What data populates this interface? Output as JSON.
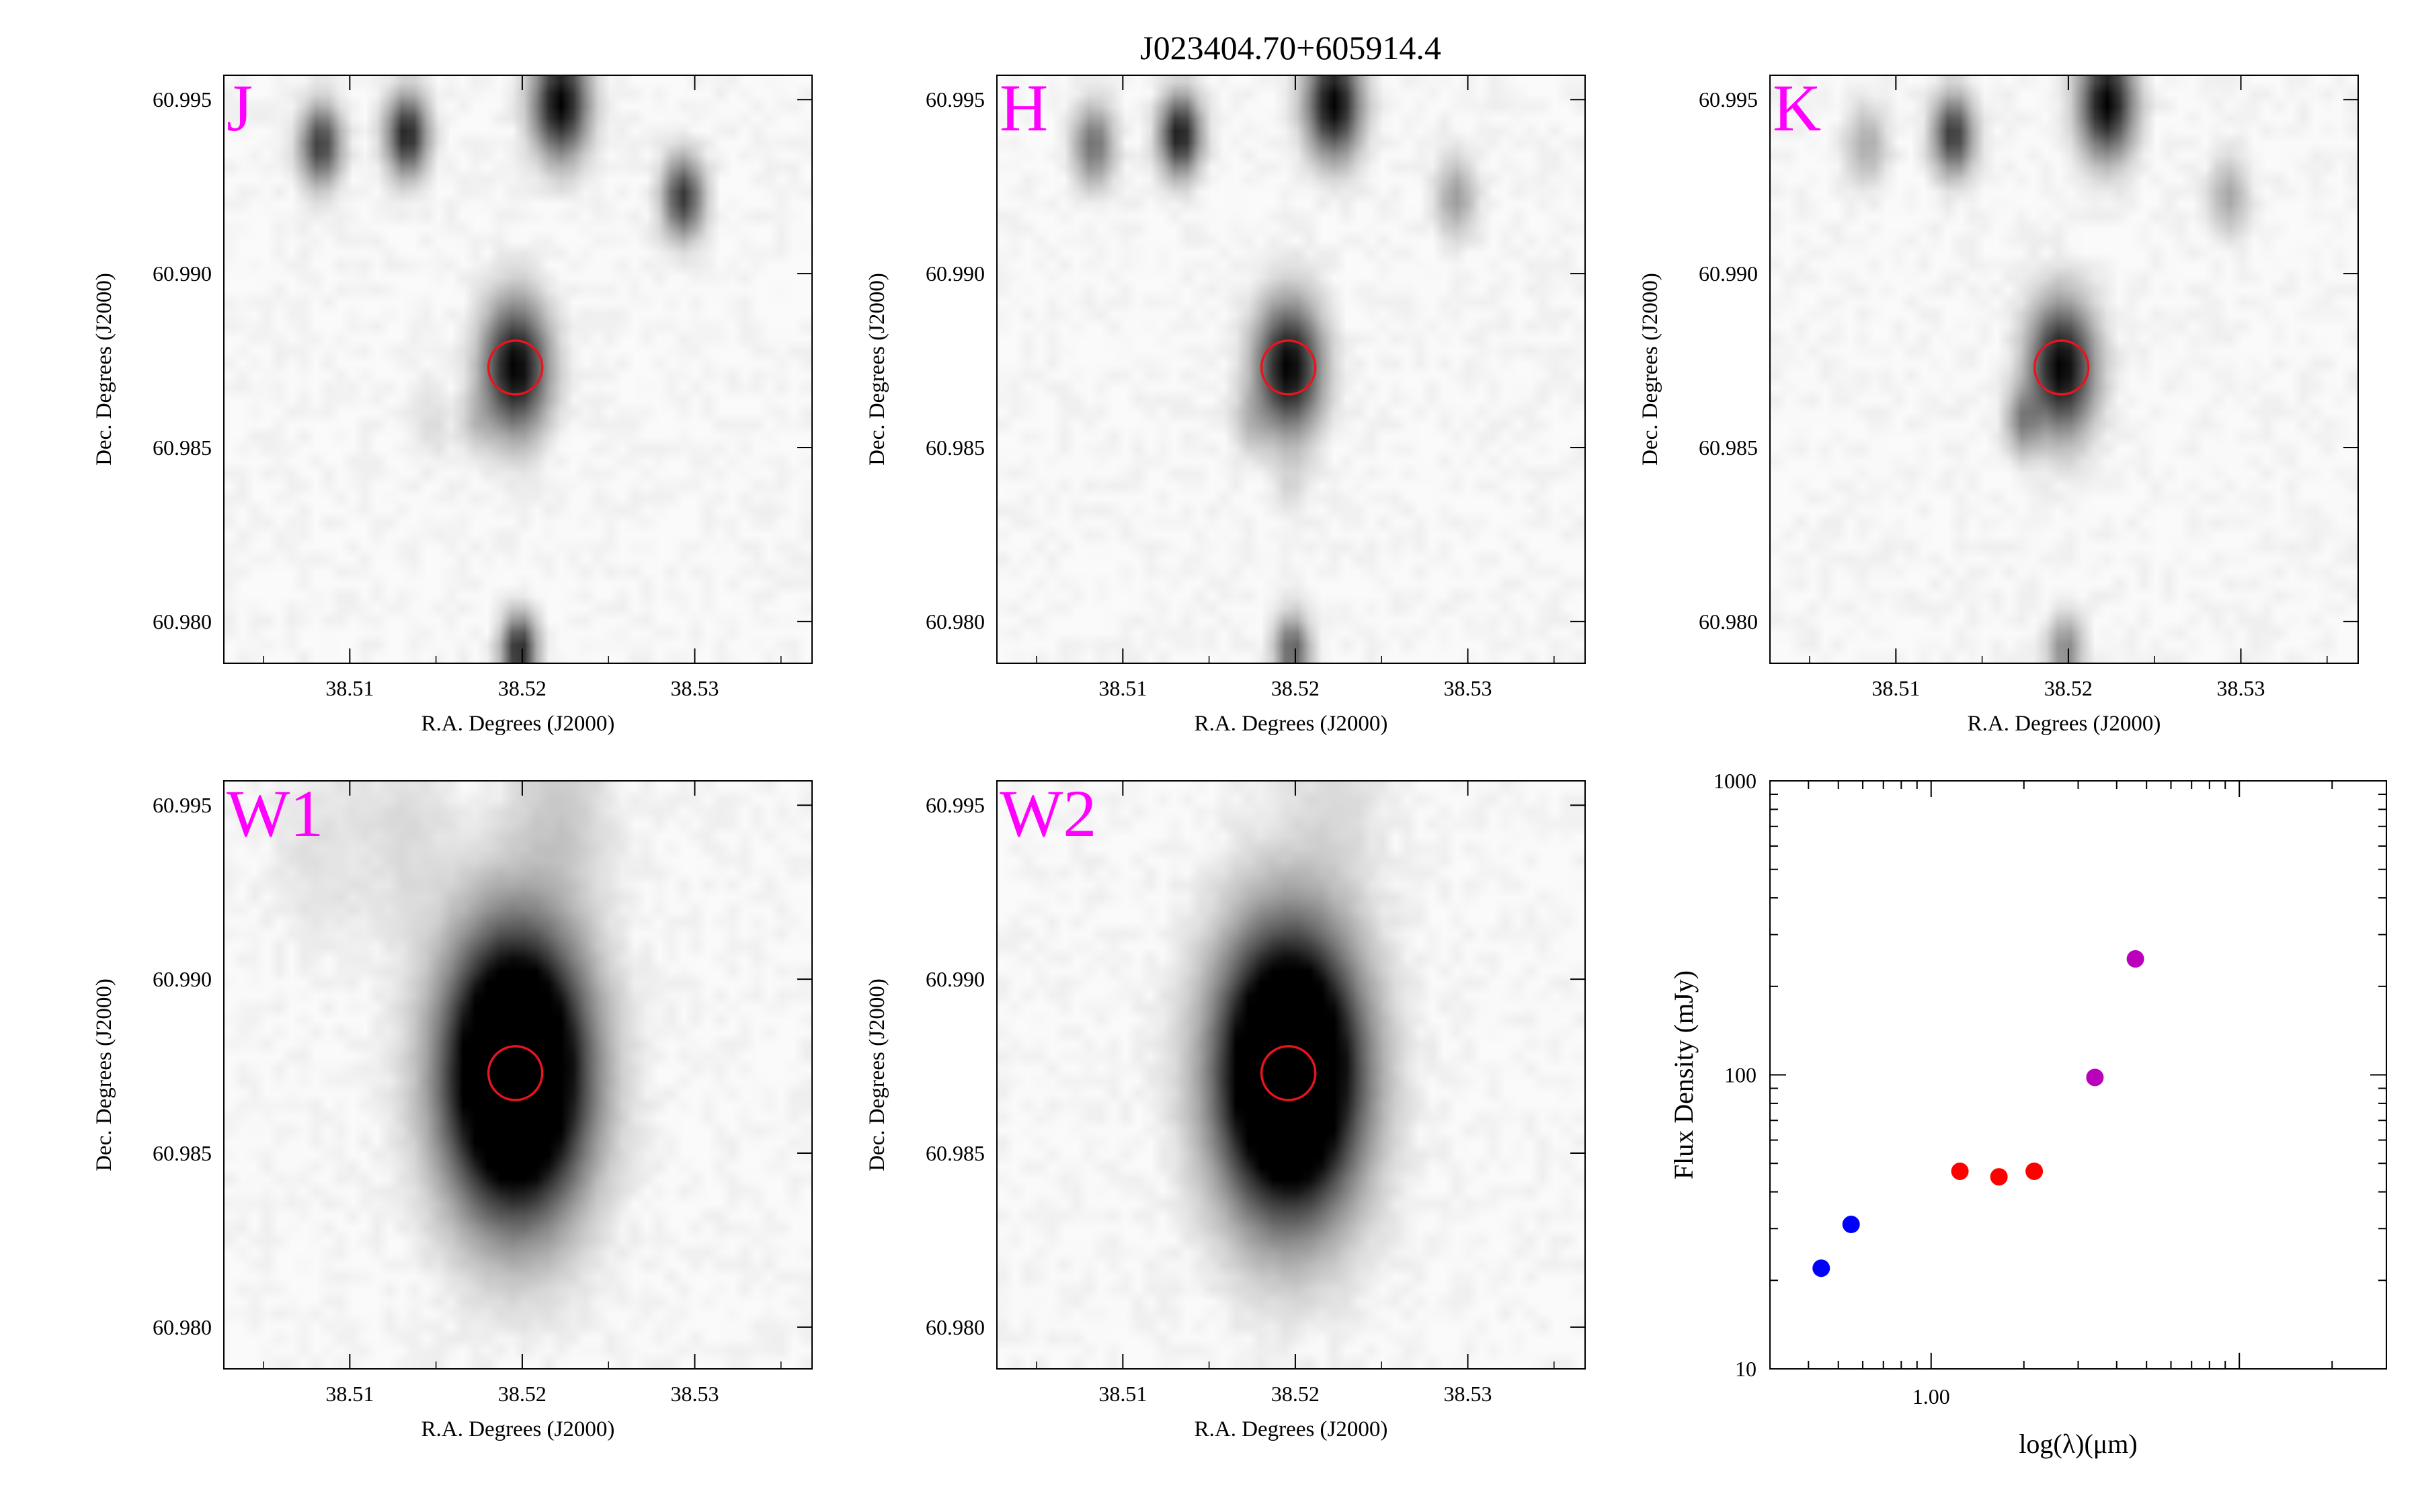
{
  "figure": {
    "title": "J023404.70+605914.4"
  },
  "colors": {
    "band_label": "#ff00ff",
    "aperture": "#e8141e",
    "star": "#000000",
    "nir_point": "#ff0000",
    "optical_point": "#0000ff",
    "wise_point": "#bb00bb"
  },
  "chart_data": [
    {
      "type": "heatmap",
      "band": "J",
      "xlabel": "R.A. Degrees (J2000)",
      "ylabel": "Dec. Degrees (J2000)",
      "xlim": [
        38.5027,
        38.5368
      ],
      "ylim": [
        60.9788,
        60.9957
      ],
      "xticks": [
        "38.51",
        "38.52",
        "38.53"
      ],
      "yticks": [
        "60.980",
        "60.985",
        "60.990",
        "60.995"
      ],
      "target": {
        "ra": 38.5196,
        "dec": 60.9873
      },
      "sources": [
        {
          "ra": 38.5196,
          "dec": 60.9873,
          "peak": 1.0,
          "sigma": 0.00115
        },
        {
          "ra": 38.5222,
          "dec": 60.9949,
          "peak": 1.0,
          "sigma": 0.00095
        },
        {
          "ra": 38.5133,
          "dec": 60.994,
          "peak": 0.85,
          "sigma": 0.0007
        },
        {
          "ra": 38.5083,
          "dec": 60.9937,
          "peak": 0.7,
          "sigma": 0.0007
        },
        {
          "ra": 38.5293,
          "dec": 60.9922,
          "peak": 0.72,
          "sigma": 0.0007
        },
        {
          "ra": 38.5174,
          "dec": 60.9858,
          "peak": 0.12,
          "sigma": 0.0006
        },
        {
          "ra": 38.5198,
          "dec": 60.9792,
          "peak": 0.85,
          "sigma": 0.0006
        },
        {
          "ra": 38.5148,
          "dec": 60.9857,
          "peak": 0.05,
          "sigma": 0.0007
        }
      ]
    },
    {
      "type": "heatmap",
      "band": "H",
      "xlabel": "R.A. Degrees (J2000)",
      "ylabel": "Dec. Degrees (J2000)",
      "xlim": [
        38.5027,
        38.5368
      ],
      "ylim": [
        60.9788,
        60.9957
      ],
      "xticks": [
        "38.51",
        "38.52",
        "38.53"
      ],
      "yticks": [
        "60.980",
        "60.985",
        "60.990",
        "60.995"
      ],
      "target": {
        "ra": 38.5196,
        "dec": 60.9873
      },
      "sources": [
        {
          "ra": 38.5196,
          "dec": 60.9873,
          "peak": 1.0,
          "sigma": 0.00115
        },
        {
          "ra": 38.5222,
          "dec": 60.9949,
          "peak": 1.0,
          "sigma": 0.00095
        },
        {
          "ra": 38.5133,
          "dec": 60.994,
          "peak": 0.9,
          "sigma": 0.0007
        },
        {
          "ra": 38.5083,
          "dec": 60.9937,
          "peak": 0.45,
          "sigma": 0.0007
        },
        {
          "ra": 38.5293,
          "dec": 60.9922,
          "peak": 0.25,
          "sigma": 0.0007
        },
        {
          "ra": 38.5174,
          "dec": 60.9858,
          "peak": 0.14,
          "sigma": 0.0006
        },
        {
          "ra": 38.5198,
          "dec": 60.9792,
          "peak": 0.55,
          "sigma": 0.0006
        },
        {
          "ra": 38.5198,
          "dec": 60.984,
          "peak": 0.06,
          "sigma": 0.0006
        }
      ]
    },
    {
      "type": "heatmap",
      "band": "K",
      "xlabel": "R.A. Degrees (J2000)",
      "ylabel": "Dec. Degrees (J2000)",
      "xlim": [
        38.5027,
        38.5368
      ],
      "ylim": [
        60.9788,
        60.9957
      ],
      "xticks": [
        "38.51",
        "38.52",
        "38.53"
      ],
      "yticks": [
        "60.980",
        "60.985",
        "60.990",
        "60.995"
      ],
      "target": {
        "ra": 38.5196,
        "dec": 60.9873
      },
      "sources": [
        {
          "ra": 38.5196,
          "dec": 60.9873,
          "peak": 1.0,
          "sigma": 0.00115
        },
        {
          "ra": 38.5222,
          "dec": 60.9949,
          "peak": 1.0,
          "sigma": 0.00095
        },
        {
          "ra": 38.5133,
          "dec": 60.994,
          "peak": 0.72,
          "sigma": 0.0007
        },
        {
          "ra": 38.5083,
          "dec": 60.9937,
          "peak": 0.2,
          "sigma": 0.0007
        },
        {
          "ra": 38.5293,
          "dec": 60.9922,
          "peak": 0.2,
          "sigma": 0.0007
        },
        {
          "ra": 38.5174,
          "dec": 60.9858,
          "peak": 0.35,
          "sigma": 0.0006
        },
        {
          "ra": 38.5198,
          "dec": 60.9792,
          "peak": 0.35,
          "sigma": 0.0006
        }
      ]
    },
    {
      "type": "heatmap",
      "band": "W1",
      "xlabel": "R.A. Degrees (J2000)",
      "ylabel": "Dec. Degrees (J2000)",
      "xlim": [
        38.5027,
        38.5368
      ],
      "ylim": [
        60.9788,
        60.9957
      ],
      "xticks": [
        "38.51",
        "38.52",
        "38.53"
      ],
      "yticks": [
        "60.980",
        "60.985",
        "60.990",
        "60.995"
      ],
      "target": {
        "ra": 38.5196,
        "dec": 60.9873
      },
      "sources": [
        {
          "ra": 38.5196,
          "dec": 60.9873,
          "peak": 2.4,
          "sigma": 0.0024
        },
        {
          "ra": 38.5222,
          "dec": 60.9949,
          "peak": 0.1,
          "sigma": 0.0018
        },
        {
          "ra": 38.5133,
          "dec": 60.994,
          "peak": 0.05,
          "sigma": 0.0018
        },
        {
          "ra": 38.5083,
          "dec": 60.9937,
          "peak": 0.04,
          "sigma": 0.0018
        }
      ]
    },
    {
      "type": "heatmap",
      "band": "W2",
      "xlabel": "R.A. Degrees (J2000)",
      "ylabel": "Dec. Degrees (J2000)",
      "xlim": [
        38.5027,
        38.5368
      ],
      "ylim": [
        60.9788,
        60.9957
      ],
      "xticks": [
        "38.51",
        "38.52",
        "38.53"
      ],
      "yticks": [
        "60.980",
        "60.985",
        "60.990",
        "60.995"
      ],
      "target": {
        "ra": 38.5196,
        "dec": 60.9873
      },
      "sources": [
        {
          "ra": 38.5196,
          "dec": 60.9873,
          "peak": 2.4,
          "sigma": 0.0024
        },
        {
          "ra": 38.5222,
          "dec": 60.9949,
          "peak": 0.05,
          "sigma": 0.0018
        }
      ]
    },
    {
      "type": "scatter",
      "title": "",
      "xlabel": "log(λ)(μm)",
      "ylabel": "Flux Density (mJy)",
      "xscale": "log",
      "yscale": "log",
      "xlim": [
        0.3,
        30
      ],
      "ylim": [
        10,
        1000
      ],
      "xticks": [
        "1.00"
      ],
      "yticks": [
        "10",
        "100",
        "1000"
      ],
      "points": [
        {
          "x": 0.44,
          "y": 22,
          "color": "#0000ff"
        },
        {
          "x": 0.55,
          "y": 31,
          "color": "#0000ff"
        },
        {
          "x": 1.24,
          "y": 47,
          "color": "#ff0000"
        },
        {
          "x": 1.66,
          "y": 45,
          "color": "#ff0000"
        },
        {
          "x": 2.16,
          "y": 47,
          "color": "#ff0000"
        },
        {
          "x": 3.4,
          "y": 98,
          "color": "#bb00bb"
        },
        {
          "x": 4.6,
          "y": 248,
          "color": "#bb00bb"
        }
      ]
    }
  ]
}
